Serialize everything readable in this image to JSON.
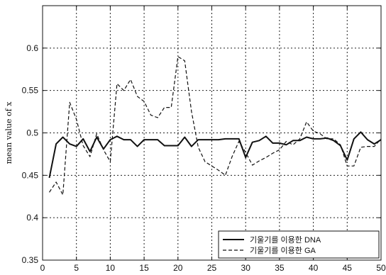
{
  "chart_data": {
    "type": "line",
    "title": "",
    "xlabel": "",
    "ylabel": "mean value of x",
    "xlim": [
      0,
      50
    ],
    "ylim": [
      0.35,
      0.65
    ],
    "xticks": [
      0,
      5,
      10,
      15,
      20,
      25,
      30,
      35,
      40,
      45,
      50
    ],
    "xtick_labels": [
      "0",
      "5",
      "10",
      "15",
      "20",
      "25",
      "30",
      "35",
      "40",
      "45",
      "50"
    ],
    "yticks": [
      0.35,
      0.4,
      0.45,
      0.5,
      0.55,
      0.6
    ],
    "ytick_labels": [
      "0.35",
      "0.4",
      "0.45",
      "0.5",
      "0.55",
      "0.6"
    ],
    "grid": true,
    "legend_position": "bottom-right",
    "series": [
      {
        "name": "기울기를 이용한 DNA",
        "style": "solid",
        "color": "#111111",
        "x": [
          1,
          2,
          3,
          4,
          5,
          6,
          7,
          8,
          9,
          10,
          11,
          12,
          13,
          14,
          15,
          16,
          17,
          18,
          19,
          20,
          21,
          22,
          23,
          24,
          25,
          26,
          27,
          28,
          29,
          30,
          31,
          32,
          33,
          34,
          35,
          36,
          37,
          38,
          39,
          40,
          41,
          42,
          43,
          44,
          45,
          46,
          47,
          48,
          49,
          50
        ],
        "y": [
          0.447,
          0.487,
          0.495,
          0.487,
          0.484,
          0.493,
          0.478,
          0.495,
          0.481,
          0.492,
          0.496,
          0.492,
          0.492,
          0.484,
          0.492,
          0.492,
          0.492,
          0.485,
          0.485,
          0.485,
          0.495,
          0.484,
          0.492,
          0.492,
          0.492,
          0.492,
          0.493,
          0.493,
          0.493,
          0.471,
          0.489,
          0.491,
          0.496,
          0.488,
          0.488,
          0.486,
          0.491,
          0.491,
          0.495,
          0.493,
          0.493,
          0.494,
          0.491,
          0.485,
          0.468,
          0.493,
          0.501,
          0.492,
          0.487,
          0.492
        ]
      },
      {
        "name": "기울기를 이용한 GA",
        "style": "dashed",
        "color": "#111111",
        "x": [
          1,
          2,
          3,
          4,
          5,
          6,
          7,
          8,
          9,
          10,
          11,
          12,
          13,
          14,
          15,
          16,
          17,
          18,
          19,
          20,
          21,
          22,
          23,
          24,
          25,
          26,
          27,
          28,
          29,
          30,
          31,
          32,
          33,
          34,
          35,
          36,
          37,
          38,
          39,
          40,
          41,
          42,
          43,
          44,
          45,
          46,
          47,
          48,
          49,
          50
        ],
        "y": [
          0.43,
          0.442,
          0.427,
          0.536,
          0.516,
          0.485,
          0.472,
          0.499,
          0.48,
          0.466,
          0.558,
          0.55,
          0.563,
          0.543,
          0.537,
          0.521,
          0.518,
          0.53,
          0.53,
          0.59,
          0.585,
          0.525,
          0.483,
          0.466,
          0.461,
          0.456,
          0.45,
          0.472,
          0.49,
          0.477,
          0.462,
          0.467,
          0.471,
          0.476,
          0.48,
          0.49,
          0.486,
          0.493,
          0.513,
          0.502,
          0.499,
          0.493,
          0.493,
          0.486,
          0.461,
          0.461,
          0.483,
          0.484,
          0.484,
          0.493
        ]
      }
    ]
  }
}
